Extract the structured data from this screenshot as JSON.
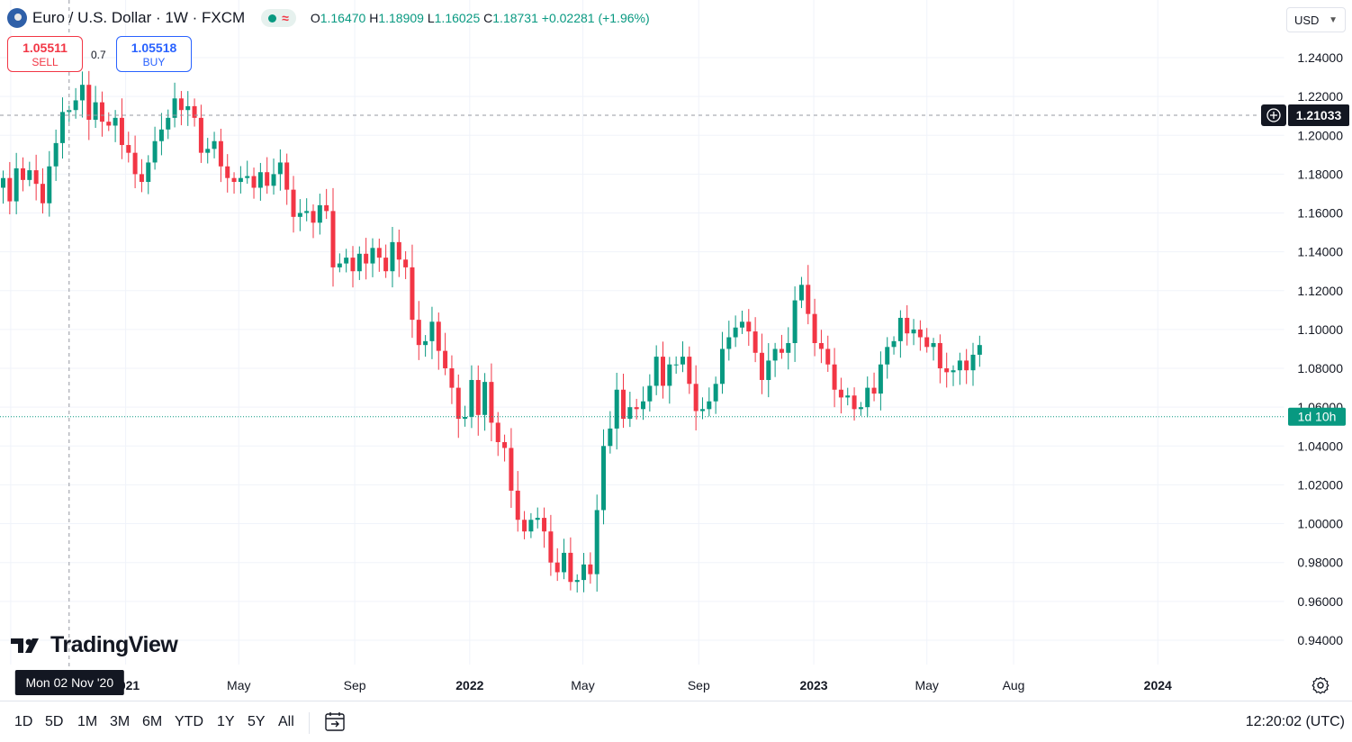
{
  "header": {
    "symbol_title": "Euro / U.S. Dollar · 1W · FXCM",
    "status_icon": "market-open-dot",
    "approx_symbol": "≈",
    "ohlc": {
      "o_label": "O",
      "o": "1.16470",
      "h_label": "H",
      "h": "1.18909",
      "l_label": "L",
      "l": "1.16025",
      "c_label": "C",
      "c": "1.18731",
      "change": "+0.02281 (+1.96%)"
    }
  },
  "trade": {
    "sell_price": "1.05511",
    "sell_label": "SELL",
    "spread": "0.7",
    "buy_price": "1.05518",
    "buy_label": "BUY"
  },
  "currency": "USD",
  "logo_text": "TradingView",
  "crosshair": {
    "price_label": "1.21033",
    "date_label": "Mon 02 Nov '20",
    "price_value": 1.21033,
    "date_value": "2020-11-02"
  },
  "last_price": {
    "value": 1.0551,
    "countdown": "1d 10h"
  },
  "toolbar": {
    "ranges": [
      "1D",
      "5D",
      "1M",
      "3M",
      "6M",
      "YTD",
      "1Y",
      "5Y",
      "All"
    ],
    "clock": "12:20:02 (UTC)"
  },
  "colors": {
    "up": "#089981",
    "down": "#f23645",
    "accent": "#2962ff"
  },
  "chart_data": {
    "type": "candlestick",
    "interval": "1W",
    "ylim": [
      0.93,
      1.25
    ],
    "grid": true,
    "y_ticks": [
      "1.24000",
      "1.22000",
      "1.20000",
      "1.18000",
      "1.16000",
      "1.14000",
      "1.12000",
      "1.10000",
      "1.08000",
      "1.06000",
      "1.04000",
      "1.02000",
      "1.00000",
      "0.98000",
      "0.96000",
      "0.94000"
    ],
    "x_ticks": [
      {
        "label": "Se",
        "date": "2020-09-01",
        "bold": false
      },
      {
        "label": "2021",
        "date": "2021-01-01",
        "bold": true
      },
      {
        "label": "May",
        "date": "2021-05-01",
        "bold": false
      },
      {
        "label": "Sep",
        "date": "2021-09-01",
        "bold": false
      },
      {
        "label": "2022",
        "date": "2022-01-01",
        "bold": true
      },
      {
        "label": "May",
        "date": "2022-05-01",
        "bold": false
      },
      {
        "label": "Sep",
        "date": "2022-09-01",
        "bold": false
      },
      {
        "label": "2023",
        "date": "2023-01-01",
        "bold": true
      },
      {
        "label": "May",
        "date": "2023-05-01",
        "bold": false
      },
      {
        "label": "Aug",
        "date": "2023-08-01",
        "bold": false
      },
      {
        "label": "2024",
        "date": "2024-01-01",
        "bold": true
      }
    ],
    "start_date": "2020-08-24",
    "closes": [
      1.178,
      1.166,
      1.183,
      1.177,
      1.182,
      1.175,
      1.165,
      1.184,
      1.196,
      1.212,
      1.213,
      1.218,
      1.226,
      1.208,
      1.217,
      1.207,
      1.205,
      1.209,
      1.195,
      1.191,
      1.18,
      1.176,
      1.186,
      1.197,
      1.203,
      1.209,
      1.219,
      1.213,
      1.215,
      1.209,
      1.191,
      1.193,
      1.197,
      1.184,
      1.178,
      1.176,
      1.178,
      1.179,
      1.173,
      1.181,
      1.174,
      1.18,
      1.186,
      1.172,
      1.158,
      1.16,
      1.161,
      1.155,
      1.164,
      1.161,
      1.132,
      1.134,
      1.137,
      1.13,
      1.139,
      1.134,
      1.142,
      1.137,
      1.13,
      1.145,
      1.136,
      1.132,
      1.105,
      1.092,
      1.094,
      1.104,
      1.089,
      1.08,
      1.07,
      1.054,
      1.055,
      1.074,
      1.056,
      1.073,
      1.052,
      1.042,
      1.039,
      1.017,
      1.002,
      0.996,
      1.002,
      1.003,
      0.996,
      0.98,
      0.975,
      0.985,
      0.97,
      0.971,
      0.979,
      0.974,
      1.007,
      1.04,
      1.049,
      1.069,
      1.054,
      1.06,
      1.059,
      1.063,
      1.071,
      1.086,
      1.071,
      1.082,
      1.082,
      1.086,
      1.072,
      1.058,
      1.059,
      1.063,
      1.072,
      1.09,
      1.096,
      1.101,
      1.104,
      1.099,
      1.088,
      1.074,
      1.084,
      1.09,
      1.088,
      1.093,
      1.115,
      1.123,
      1.108,
      1.093,
      1.09,
      1.082,
      1.069,
      1.065,
      1.066,
      1.059,
      1.06,
      1.07,
      1.067,
      1.082,
      1.091,
      1.094,
      1.106,
      1.098,
      1.1,
      1.096,
      1.091,
      1.093,
      1.08,
      1.078,
      1.079,
      1.084,
      1.079,
      1.087,
      1.092
    ]
  }
}
